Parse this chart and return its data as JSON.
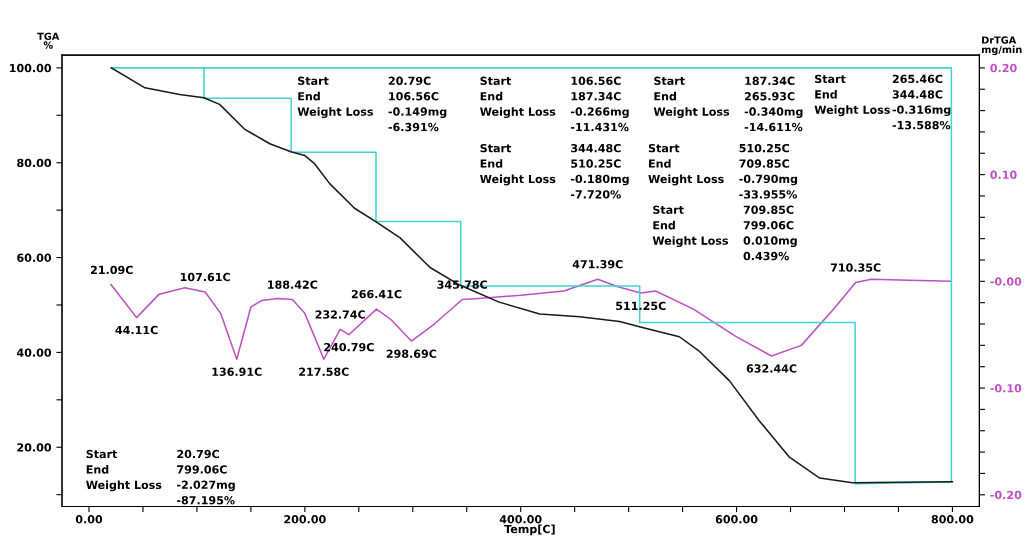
{
  "chart_data": {
    "type": "line",
    "xlabel": "Temp[C]",
    "ylabel": "TGA\n%",
    "y2label": "DrTGA\nmg/min",
    "xlim": [
      -25,
      825
    ],
    "xticks": [
      {
        "value": 0,
        "label": "0.00"
      },
      {
        "value": 50,
        "label": null
      },
      {
        "value": 100,
        "label": null
      },
      {
        "value": 150,
        "label": null
      },
      {
        "value": 200,
        "label": "200.00"
      },
      {
        "value": 250,
        "label": null
      },
      {
        "value": 300,
        "label": null
      },
      {
        "value": 350,
        "label": null
      },
      {
        "value": 400,
        "label": "400.00"
      },
      {
        "value": 450,
        "label": null
      },
      {
        "value": 500,
        "label": null
      },
      {
        "value": 550,
        "label": null
      },
      {
        "value": 600,
        "label": "600.00"
      },
      {
        "value": 650,
        "label": null
      },
      {
        "value": 700,
        "label": null
      },
      {
        "value": 750,
        "label": null
      },
      {
        "value": 800,
        "label": "800.00"
      }
    ],
    "ylim": [
      7.5,
      102.7
    ],
    "yticks": [
      {
        "value": 10,
        "label": null
      },
      {
        "value": 20,
        "label": "20.00"
      },
      {
        "value": 30,
        "label": null
      },
      {
        "value": 40,
        "label": "40.00"
      },
      {
        "value": 50,
        "label": null
      },
      {
        "value": 60,
        "label": "60.00"
      },
      {
        "value": 70,
        "label": null
      },
      {
        "value": 80,
        "label": "80.00"
      },
      {
        "value": 90,
        "label": null
      },
      {
        "value": 100,
        "label": "100.00"
      }
    ],
    "y2lim": [
      -0.211,
      0.212
    ],
    "y2ticks": [
      {
        "value": -0.2,
        "label": "-0.20"
      },
      {
        "value": -0.18,
        "label": null
      },
      {
        "value": -0.16,
        "label": null
      },
      {
        "value": -0.14,
        "label": null
      },
      {
        "value": -0.12,
        "label": null
      },
      {
        "value": -0.1,
        "label": "-0.10"
      },
      {
        "value": -0.08,
        "label": null
      },
      {
        "value": -0.06,
        "label": null
      },
      {
        "value": -0.04,
        "label": null
      },
      {
        "value": -0.02,
        "label": null
      },
      {
        "value": 0,
        "label": "-0.00"
      },
      {
        "value": 0.02,
        "label": null
      },
      {
        "value": 0.04,
        "label": null
      },
      {
        "value": 0.06,
        "label": null
      },
      {
        "value": 0.08,
        "label": null
      },
      {
        "value": 0.1,
        "label": "0.10"
      },
      {
        "value": 0.12,
        "label": null
      },
      {
        "value": 0.14,
        "label": null
      },
      {
        "value": 0.16,
        "label": null
      },
      {
        "value": 0.18,
        "label": null
      },
      {
        "value": 0.2,
        "label": "0.20"
      }
    ],
    "grid": false,
    "series": [
      {
        "color": "#40d4d4",
        "x": [
          106.56,
          106.56,
          187.34,
          187.34,
          265.93,
          265.93,
          344.48,
          344.48,
          510.25,
          510.25,
          709.85,
          709.85,
          799.06,
          799.06,
          20.79
        ],
        "values": [
          100,
          93.6,
          93.6,
          82.2,
          82.2,
          67.6,
          67.6,
          54.0,
          54.0,
          46.3,
          46.3,
          12.3,
          12.7,
          100,
          100
        ]
      },
      {
        "color": "#1a1a1a",
        "x": [
          20.8,
          51.9,
          84,
          106.5,
          121,
          144,
          167.6,
          187,
          200,
          209,
          223,
          246,
          265.7,
          288,
          316,
          343.5,
          380,
          417.6,
          454.6,
          491.7,
          510,
          547,
          565.7,
          593.5,
          621,
          649,
          677,
          707.4,
          751,
          800
        ],
        "values": [
          100,
          95.8,
          94.4,
          93.7,
          92.3,
          87.1,
          84.0,
          82.3,
          81.5,
          79.8,
          75.6,
          70.4,
          67.6,
          64.2,
          57.9,
          54.2,
          50.6,
          48.1,
          47.5,
          46.5,
          45.4,
          43.3,
          40.2,
          34.0,
          25.6,
          17.9,
          13.5,
          12.5,
          12.6,
          12.7
        ]
      },
      {
        "axis": "y2",
        "color": "#c04fc4",
        "x": [
          20.4,
          44.1,
          65,
          88.9,
          107.6,
          122,
          136.9,
          150,
          160,
          175,
          188.4,
          200,
          217.6,
          232.7,
          240.8,
          266.4,
          280,
          298.7,
          320,
          345.8,
          361,
          400,
          440,
          471.4,
          490,
          511.3,
          525,
          560,
          600,
          632.4,
          660,
          690,
          710.4,
          725,
          760,
          799
        ],
        "values": [
          -0.003,
          -0.034,
          -0.012,
          -0.006,
          -0.01,
          -0.03,
          -0.073,
          -0.024,
          -0.018,
          -0.016,
          -0.017,
          -0.03,
          -0.073,
          -0.045,
          -0.05,
          -0.026,
          -0.036,
          -0.056,
          -0.04,
          -0.017,
          -0.016,
          -0.013,
          -0.009,
          0.002,
          -0.005,
          -0.011,
          -0.009,
          -0.026,
          -0.052,
          -0.07,
          -0.06,
          -0.026,
          -0.001,
          0.002,
          0.001,
          0.0
        ]
      }
    ],
    "annotations": [
      "Start 20.79C\nEnd 106.56C\nWeight Loss -0.149mg\n-6.391%",
      "Start 106.56C\nEnd 187.34C\nWeight Loss -0.266mg\n-11.431%",
      "Start 187.34C\nEnd 265.93C\nWeight Loss -0.340mg\n-14.611%",
      "Start 265.46C\nEnd 344.48C\nWeight Loss -0.316mg\n-13.588%",
      "Start 344.48C\nEnd 510.25C\nWeight Loss -0.180mg\n-7.720%",
      "Start 510.25C\nEnd 709.85C\nWeight Loss -0.790mg\n-33.955%",
      "Start 709.85C\nEnd 799.06C\nWeight Loss 0.010mg\n0.439%",
      "Start 20.79C\nEnd 799.06C\nWeight Loss -2.027mg\n-87.195%",
      {
        "text": "21.09C",
        "x": 21.09,
        "y": 54.3
      },
      {
        "text": "44.11C",
        "x": 44.11,
        "y": 47.4
      },
      {
        "text": "107.61C",
        "x": 107.61,
        "y": 52.8
      },
      {
        "text": "136.91C",
        "x": 136.91,
        "y": 38.6
      },
      {
        "text": "188.42C",
        "x": 188.42,
        "y": 51.2
      },
      {
        "text": "217.58C",
        "x": 217.58,
        "y": 38.6
      },
      {
        "text": "232.74C",
        "x": 232.74,
        "y": 44.9
      },
      {
        "text": "240.79C",
        "x": 240.79,
        "y": 43.8
      },
      {
        "text": "266.41C",
        "x": 266.41,
        "y": 49.2
      },
      {
        "text": "298.69C",
        "x": 298.69,
        "y": 42.4
      },
      {
        "text": "345.78C",
        "x": 345.78,
        "y": 51.2
      },
      {
        "text": "471.39C",
        "x": 471.39,
        "y": 55.5
      },
      {
        "text": "511.25C",
        "x": 511.25,
        "y": 52.5
      },
      {
        "text": "632.44C",
        "x": 632.44,
        "y": 39.3
      },
      {
        "text": "710.35C",
        "x": 710.35,
        "y": 54.8
      }
    ]
  }
}
